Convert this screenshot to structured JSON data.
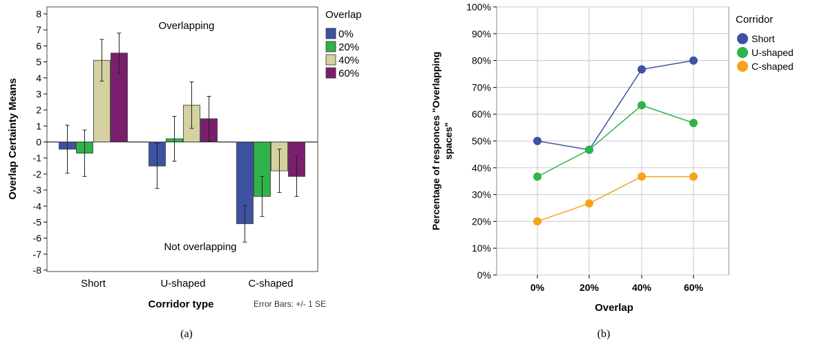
{
  "chart_data": [
    {
      "type": "bar",
      "xlabel": "Corridor type",
      "ylabel": "Overlap Certainty Means",
      "ylim": [
        -8,
        8
      ],
      "yticks": [
        "8",
        "7",
        "6",
        "5",
        "4",
        "3",
        "2",
        "1",
        "0",
        "-1",
        "-2",
        "-3",
        "-4",
        "-5",
        "-6",
        "-7",
        "-8"
      ],
      "categories": [
        "Short",
        "U-shaped",
        "C-shaped"
      ],
      "legend_title": "Overlap",
      "legend_placement": "right",
      "series": [
        {
          "name": "0%",
          "color": "#3d52a1",
          "values": [
            -0.45,
            -1.5,
            -5.1
          ],
          "se": [
            1.5,
            1.4,
            1.15
          ]
        },
        {
          "name": "20%",
          "color": "#2fb34a",
          "values": [
            -0.7,
            0.2,
            -3.4
          ],
          "se": [
            1.45,
            1.4,
            1.25
          ]
        },
        {
          "name": "40%",
          "color": "#d5d1a0",
          "values": [
            5.1,
            2.3,
            -1.8
          ],
          "se": [
            1.3,
            1.45,
            1.35
          ]
        },
        {
          "name": "60%",
          "color": "#7a1f6e",
          "values": [
            5.55,
            1.45,
            -2.15
          ],
          "se": [
            1.25,
            1.4,
            1.25
          ]
        }
      ],
      "annotations": {
        "top": "Overlapping",
        "bottom": "Not overlapping"
      },
      "error_note": "Error Bars: +/- 1 SE",
      "grid": false,
      "caption": "(a)"
    },
    {
      "type": "line",
      "xlabel": "Overlap",
      "ylabel_line1": "Percentage of responces \"Overlapping",
      "ylabel_line2": "spaces\"",
      "ylim": [
        0,
        100
      ],
      "yticks": [
        "100%",
        "90%",
        "80%",
        "70%",
        "60%",
        "50%",
        "40%",
        "30%",
        "20%",
        "10%",
        "0%"
      ],
      "x": [
        "0%",
        "20%",
        "40%",
        "60%"
      ],
      "legend_title": "Corridor",
      "legend_placement": "right",
      "series": [
        {
          "name": "Short",
          "color": "#3d52a1",
          "values": [
            50,
            46.7,
            76.7,
            80
          ]
        },
        {
          "name": "U-shaped",
          "color": "#2fb34a",
          "values": [
            36.7,
            46.7,
            63.3,
            56.7
          ]
        },
        {
          "name": "C-shaped",
          "color": "#f7a21b",
          "values": [
            20,
            26.7,
            36.7,
            36.7
          ]
        }
      ],
      "grid": true,
      "caption": "(b)"
    }
  ]
}
